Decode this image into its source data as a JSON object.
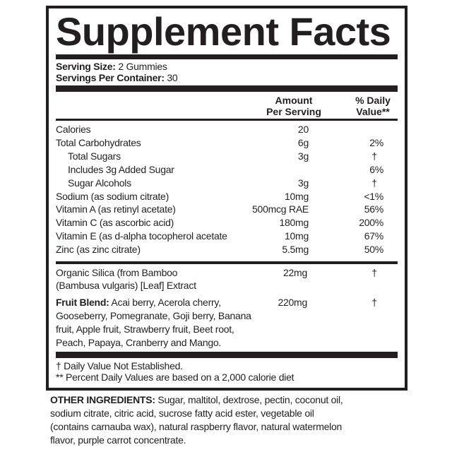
{
  "title": "Supplement Facts",
  "serving": {
    "size_label": "Serving Size:",
    "size_value": "2 Gummies",
    "per_container_label": "Servings Per Container:",
    "per_container_value": "30"
  },
  "headers": {
    "amount_1": "Amount",
    "amount_2": "Per Serving",
    "dv_1": "% Daily",
    "dv_2": "Value**"
  },
  "nutrients": [
    {
      "name": "Calories",
      "amount": "20",
      "dv": ""
    },
    {
      "name": "Total Carbohydrates",
      "amount": "6g",
      "dv": "2%"
    },
    {
      "name": "Total Sugars",
      "amount": "3g",
      "dv": "†"
    },
    {
      "name": "Includes 3g Added Sugar",
      "amount": "",
      "dv": "6%"
    },
    {
      "name": "Sugar Alcohols",
      "amount": "3g",
      "dv": "†"
    },
    {
      "name": "Sodium (as sodium citrate)",
      "amount": "10mg",
      "dv": "<1%"
    },
    {
      "name": "Vitamin A (as retinyl acetate)",
      "amount": "500mcg RAE",
      "dv": "56%"
    },
    {
      "name": "Vitamin C (as ascorbic acid)",
      "amount": "180mg",
      "dv": "200%"
    },
    {
      "name": "Vitamin E (as d-alpha tocopherol acetate",
      "amount": "10mg",
      "dv": "67%"
    },
    {
      "name": "Zinc (as zinc citrate)",
      "amount": "5.5mg",
      "dv": "50%"
    }
  ],
  "silica": {
    "line1": "Organic Silica (from Bamboo",
    "line2": "(Bambusa vulgaris) [Leaf] Extract",
    "amount": "22mg",
    "dv": "†"
  },
  "fruit_blend": {
    "label": "Fruit Blend:",
    "line1": " Acai berry, Acerola cherry,",
    "line2": "Gooseberry, Pomegranate, Goji berry, Banana",
    "line3": "fruit, Apple fruit, Strawberry fruit, Beet root,",
    "line4": "Peach, Papaya, Cranberry and Mango.",
    "amount": "220mg",
    "dv": "†"
  },
  "footnotes": [
    "† Daily Value Not Established.",
    "** Percent Daily Values are based on a 2,000 calorie diet"
  ],
  "other_ingredients": {
    "label": "OTHER INGREDIENTS:",
    "line1": " Sugar, maltitol, dextrose, pectin, coconut oil,",
    "line2": "sodium citrate, citric acid, sucrose fatty acid ester, vegetable oil",
    "line3": "(contains carnauba wax), natural raspberry flavor, natural watermelon",
    "line4": "flavor, purple carrot concentrate."
  }
}
